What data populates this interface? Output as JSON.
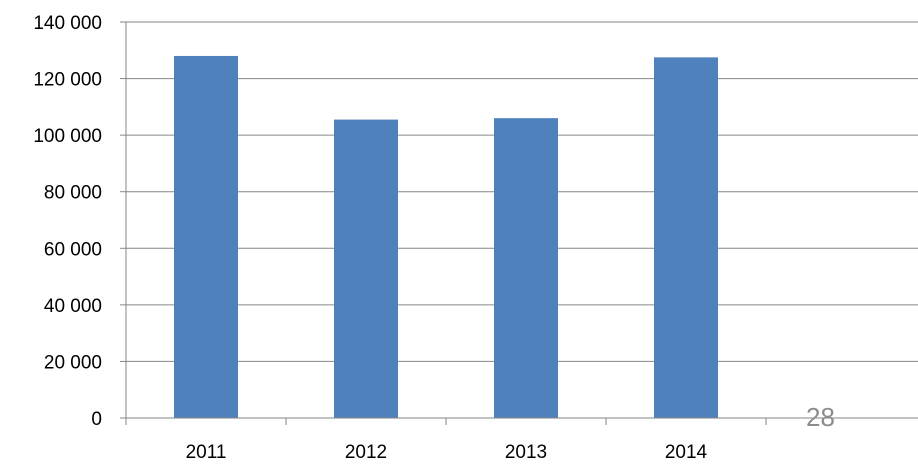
{
  "chart_data": {
    "type": "bar",
    "title": "",
    "xlabel": "",
    "ylabel": "",
    "categories": [
      "2011",
      "2012",
      "2013",
      "2014"
    ],
    "series": [
      {
        "values": [
          128000,
          105500,
          106000,
          127500
        ]
      }
    ],
    "ylim": [
      0,
      140000
    ],
    "yticks": [
      0,
      20000,
      40000,
      60000,
      80000,
      100000,
      120000,
      140000
    ],
    "ytick_labels": [
      "0",
      "20 000",
      "40 000",
      "60 000",
      "80 000",
      "100 000",
      "120 000",
      "140 000"
    ],
    "grid": true,
    "legend": "none",
    "bar_color": "#4f81bd",
    "grid_color": "#868686"
  },
  "page_number": "28"
}
